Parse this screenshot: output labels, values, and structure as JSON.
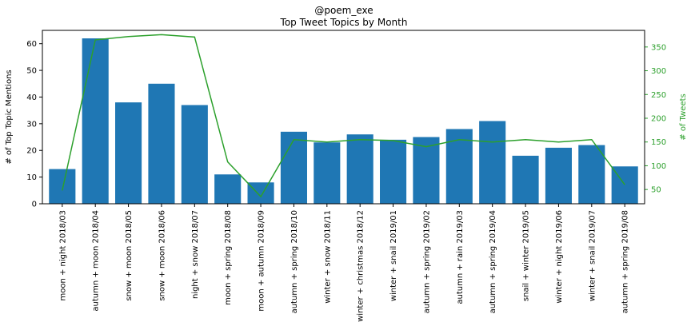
{
  "chart_data": {
    "type": "bar",
    "title": "@poem_exe",
    "subtitle": "Top Tweet Topics by Month",
    "ylabel": "# of Top Topic Mentions",
    "ylabel_right": "# of Tweets",
    "ylim": [
      0,
      65
    ],
    "ylim_right": [
      20,
      385
    ],
    "yticks": [
      0,
      10,
      20,
      30,
      40,
      50,
      60
    ],
    "yticks_right": [
      50,
      100,
      150,
      200,
      250,
      300,
      350
    ],
    "grid": false,
    "categories": [
      "moon + night 2018/03",
      "autumn + moon 2018/04",
      "snow + moon 2018/05",
      "snow + moon 2018/06",
      "night + snow 2018/07",
      "moon + spring 2018/08",
      "moon + autumn 2018/09",
      "autumn + spring 2018/10",
      "winter + snow 2018/11",
      "winter + christmas 2018/12",
      "winter + snail 2019/01",
      "autumn + spring 2019/02",
      "autumn + rain 2019/03",
      "autumn + spring 2019/04",
      "snail + winter 2019/05",
      "winter + night 2019/06",
      "winter + snail 2019/07",
      "autumn + spring 2019/08"
    ],
    "series": [
      {
        "type": "bar",
        "axis": "left",
        "values": [
          13,
          62,
          38,
          45,
          37,
          11,
          8,
          27,
          23,
          26,
          24,
          25,
          28,
          31,
          18,
          21,
          22,
          14
        ]
      },
      {
        "type": "line",
        "axis": "right",
        "values": [
          48,
          365,
          372,
          376,
          371,
          108,
          35,
          155,
          150,
          155,
          153,
          140,
          155,
          150,
          155,
          150,
          155,
          60
        ]
      }
    ],
    "colors": {
      "bar": "#1f77b4",
      "line": "#2ca02c",
      "right_axis": "#2ca02c",
      "axis": "#000000"
    }
  }
}
